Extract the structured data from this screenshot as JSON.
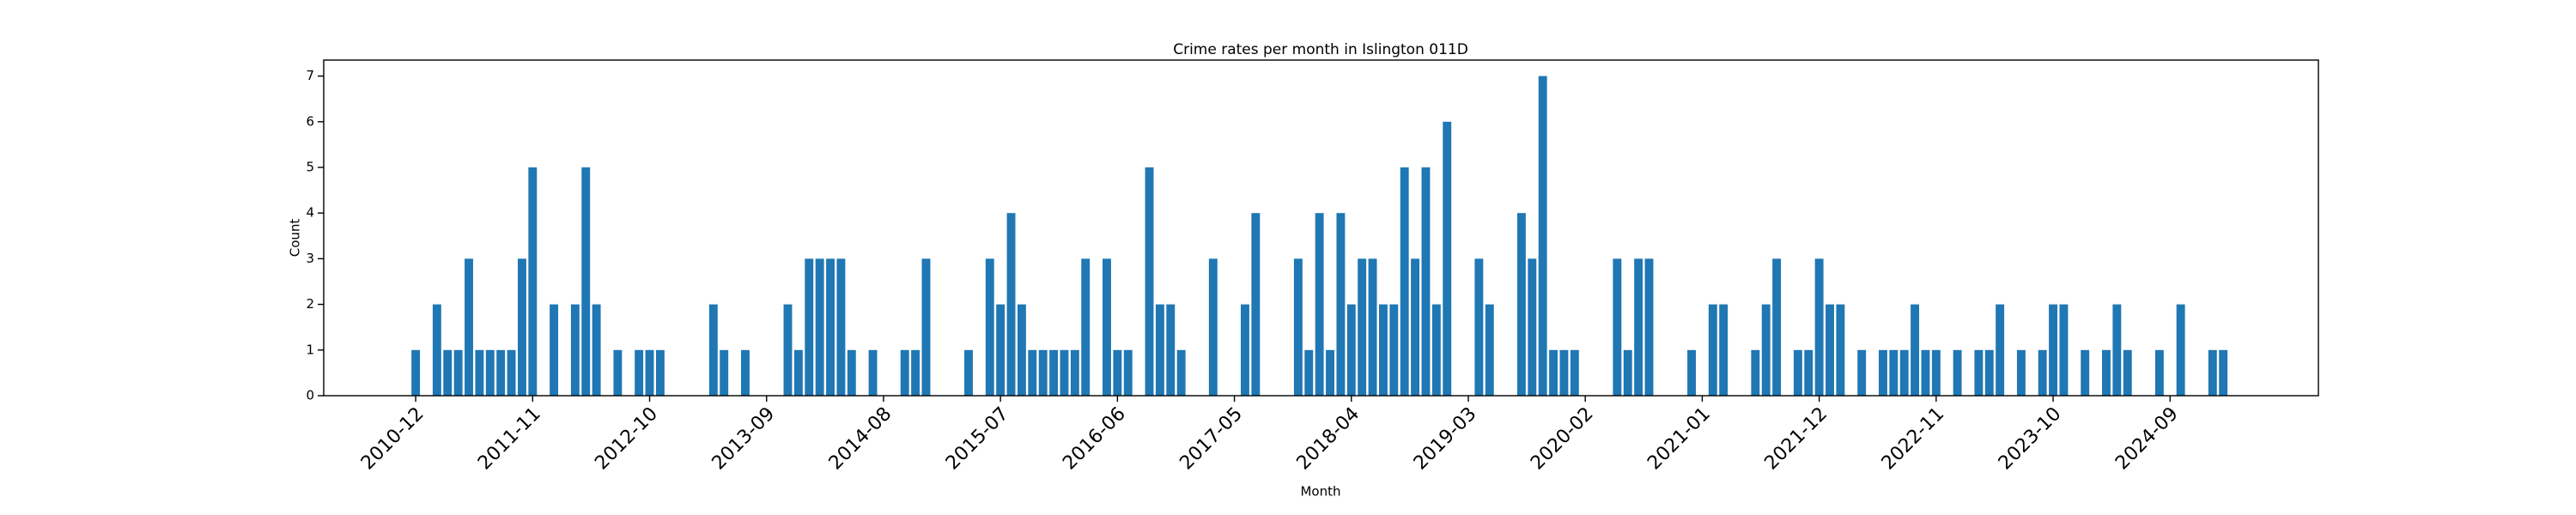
{
  "chart_data": {
    "type": "bar",
    "title": "Crime rates per month in Islington 011D",
    "xlabel": "Month",
    "ylabel": "Count",
    "color": "#1f77b4",
    "categories": [
      "2010-12",
      null,
      null,
      null,
      null,
      null,
      null,
      null,
      null,
      null,
      null,
      "2011-11",
      null,
      null,
      null,
      null,
      null,
      null,
      null,
      null,
      null,
      null,
      "2012-10",
      null,
      null,
      null,
      null,
      null,
      null,
      null,
      null,
      null,
      null,
      "2013-09",
      null,
      null,
      null,
      null,
      null,
      null,
      null,
      null,
      null,
      null,
      "2014-08",
      null,
      null,
      null,
      null,
      null,
      null,
      null,
      null,
      null,
      null,
      "2015-07",
      null,
      null,
      null,
      null,
      null,
      null,
      null,
      null,
      null,
      null,
      "2016-06",
      null,
      null,
      null,
      null,
      null,
      null,
      null,
      null,
      null,
      null,
      "2017-05",
      null,
      null,
      null,
      null,
      null,
      null,
      null,
      null,
      null,
      null,
      "2018-04",
      null,
      null,
      null,
      null,
      null,
      null,
      null,
      null,
      null,
      null,
      "2019-03",
      null,
      null,
      null,
      null,
      null,
      null,
      null,
      null,
      null,
      null,
      "2020-02",
      null,
      null,
      null,
      null,
      null,
      null,
      null,
      null,
      null,
      null,
      "2021-01",
      null,
      null,
      null,
      null,
      null,
      null,
      null,
      null,
      null,
      null,
      "2021-12",
      null,
      null,
      null,
      null,
      null,
      null,
      null,
      null,
      null,
      null,
      "2022-11",
      null,
      null,
      null,
      null,
      null,
      null,
      null,
      null,
      null,
      null,
      "2023-10",
      null,
      null,
      null,
      null,
      null,
      null,
      null,
      null,
      null,
      null,
      "2024-09",
      null,
      null,
      null,
      null,
      null
    ],
    "values": [
      1,
      0,
      2,
      1,
      1,
      3,
      1,
      1,
      1,
      1,
      3,
      5,
      0,
      2,
      0,
      2,
      5,
      2,
      0,
      1,
      0,
      1,
      1,
      1,
      0,
      0,
      0,
      0,
      2,
      1,
      0,
      1,
      0,
      0,
      0,
      2,
      1,
      3,
      3,
      3,
      3,
      1,
      0,
      1,
      0,
      0,
      1,
      1,
      3,
      0,
      0,
      0,
      1,
      0,
      3,
      2,
      4,
      2,
      1,
      1,
      1,
      1,
      1,
      3,
      0,
      3,
      1,
      1,
      0,
      5,
      2,
      2,
      1,
      0,
      0,
      3,
      0,
      0,
      2,
      4,
      0,
      0,
      0,
      3,
      1,
      4,
      1,
      4,
      2,
      3,
      3,
      2,
      2,
      5,
      3,
      5,
      2,
      6,
      0,
      0,
      3,
      2,
      0,
      0,
      4,
      3,
      7,
      1,
      1,
      1,
      0,
      0,
      0,
      3,
      1,
      3,
      3,
      0,
      0,
      0,
      1,
      0,
      2,
      2,
      0,
      0,
      1,
      2,
      3,
      0,
      1,
      1,
      3,
      2,
      2,
      0,
      1,
      0,
      1,
      1,
      1,
      2,
      1,
      1,
      0,
      1,
      0,
      1,
      1,
      2,
      0,
      1,
      0,
      1,
      2,
      2,
      0,
      1,
      0,
      1,
      2,
      1,
      0,
      0,
      1,
      0,
      2,
      0,
      0,
      1,
      1
    ],
    "ylim": [
      0,
      7.35
    ],
    "yticks": [
      0,
      1,
      2,
      3,
      4,
      5,
      6,
      7
    ]
  }
}
